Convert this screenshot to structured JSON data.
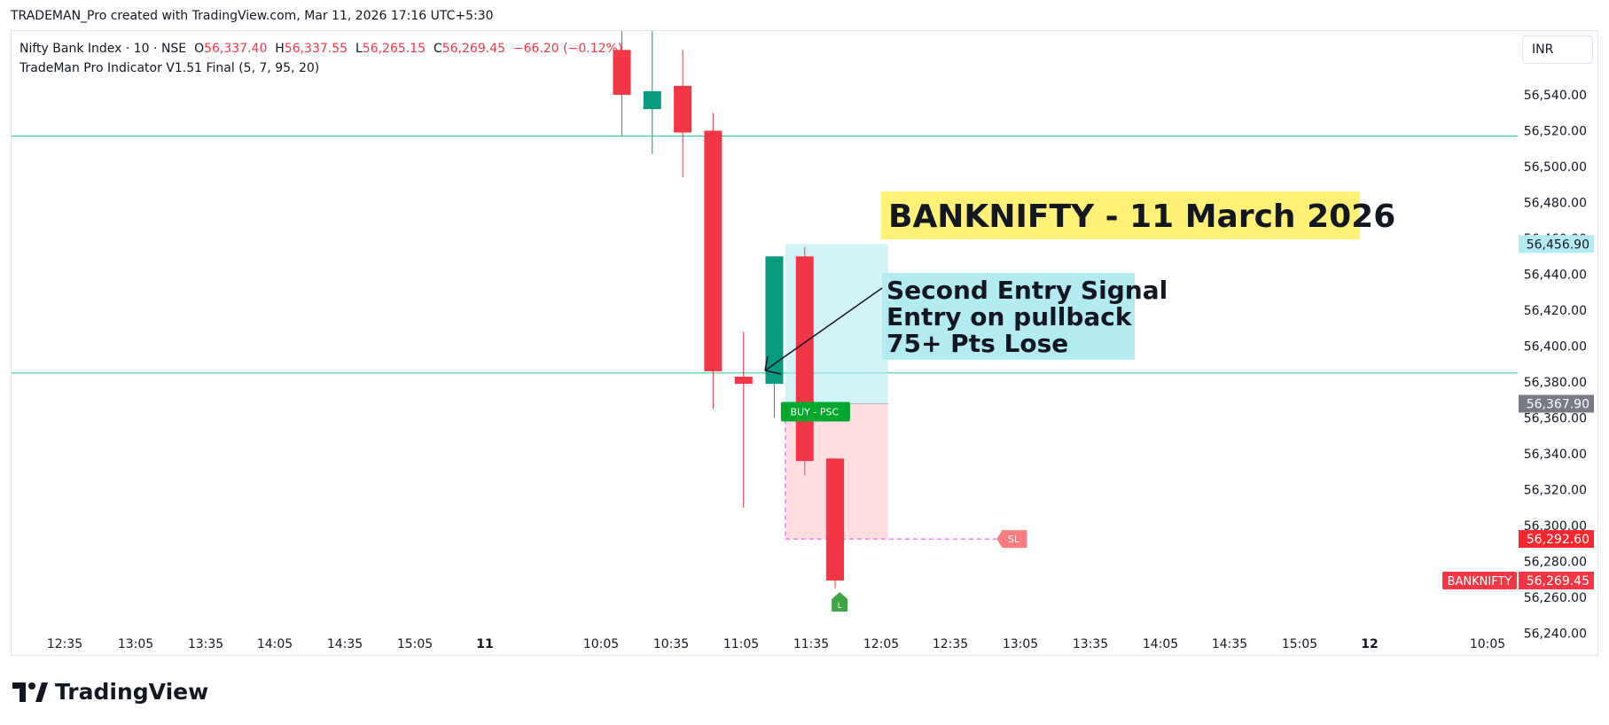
{
  "header": {
    "caption": "TRADEMAN_Pro created with TradingView.com, Mar 11, 2026 17:16 UTC+5:30",
    "currency": "INR"
  },
  "legend": {
    "symbol": "Nifty Bank Index · 10 · NSE",
    "o_label": "O",
    "o_value": "56,337.40",
    "h_label": "H",
    "h_value": "56,337.55",
    "l_label": "L",
    "l_value": "56,265.15",
    "c_label": "C",
    "c_value": "56,269.45",
    "change": "−66.20 (−0.12%)",
    "indicator": "TradeMan Pro Indicator V1.51 Final (5, 7, 95, 20)"
  },
  "brand": {
    "name": "TradingView"
  },
  "colors": {
    "up": "#089981",
    "down": "#f23645",
    "hline": "#26c6a0",
    "profit_zone": "#b2ebf2",
    "loss_zone": "#ffcdd2",
    "title_bg": "#fff176",
    "note_bg": "#b2ebf2"
  },
  "chart_data": {
    "type": "candlestick",
    "title": "BANKNIFTY - 11 March 2026",
    "y_axis": {
      "ticks": [
        56240,
        56260,
        56280,
        56300,
        56320,
        56340,
        56360,
        56380,
        56400,
        56420,
        56440,
        56460,
        56480,
        56500,
        56520,
        56540
      ],
      "tick_labels": [
        "56,240.00",
        "56,260.00",
        "56,280.00",
        "56,300.00",
        "56,320.00",
        "56,340.00",
        "56,360.00",
        "56,380.00",
        "56,400.00",
        "56,420.00",
        "56,440.00",
        "56,460.00",
        "56,480.00",
        "56,500.00",
        "56,520.00",
        "56,540.00"
      ],
      "range": [
        56225,
        56578
      ]
    },
    "x_axis": {
      "labels": [
        "12:35",
        "13:05",
        "13:35",
        "14:05",
        "14:35",
        "15:05",
        "11",
        "10:05",
        "10:35",
        "11:05",
        "11:35",
        "12:05",
        "12:35",
        "13:05",
        "13:35",
        "14:05",
        "14:35",
        "15:05",
        "12",
        "10:05"
      ],
      "bold": [
        "11",
        "12"
      ]
    },
    "candles": [
      {
        "slot": 0.55,
        "open": 56565,
        "high": 56585,
        "low": 56517,
        "close": 56540
      },
      {
        "slot": 1.43,
        "open": 56532,
        "high": 56578,
        "low": 56507,
        "close": 56542
      },
      {
        "slot": 2.31,
        "open": 56545,
        "high": 56565,
        "low": 56494,
        "close": 56519
      },
      {
        "slot": 3.19,
        "open": 56520,
        "high": 56530,
        "low": 56365,
        "close": 56386
      },
      {
        "slot": 4.07,
        "open": 56383,
        "high": 56408,
        "low": 56310,
        "close": 56379
      },
      {
        "slot": 4.96,
        "open": 56379,
        "high": 56450,
        "low": 56360,
        "close": 56450
      },
      {
        "slot": 5.84,
        "open": 56450,
        "high": 56455,
        "low": 56328,
        "close": 56336
      },
      {
        "slot": 6.72,
        "open": 56337.4,
        "high": 56337.55,
        "low": 56265.15,
        "close": 56269.45
      }
    ],
    "horizontal_lines": [
      56517,
      56385
    ],
    "price_tags": [
      {
        "value": 56456.9,
        "label": "56,456.90",
        "color": "#b2ebf2",
        "text_color": "#131722"
      },
      {
        "value": 56367.9,
        "label": "56,367.90",
        "color": "#787b86",
        "text_color": "#ffffff"
      },
      {
        "value": 56292.6,
        "label": "56,292.60",
        "color": "#f7262f",
        "text_color": "#ffffff"
      },
      {
        "value": 56269.45,
        "label": "56,269.45",
        "color": "#f23645",
        "text_color": "#ffffff"
      }
    ],
    "symbol_tag": "BANKNIFTY",
    "position": {
      "entry": 56367.9,
      "target": 56456.9,
      "stop": 56292.6,
      "signal_label": "BUY -  PSC",
      "stop_label": "SL",
      "exit_label": "L"
    },
    "annotations": {
      "title": "BANKNIFTY - 11 March 2026",
      "note_lines": [
        "Second Entry Signal",
        "Entry on pullback",
        "75+ Pts Lose"
      ]
    }
  }
}
